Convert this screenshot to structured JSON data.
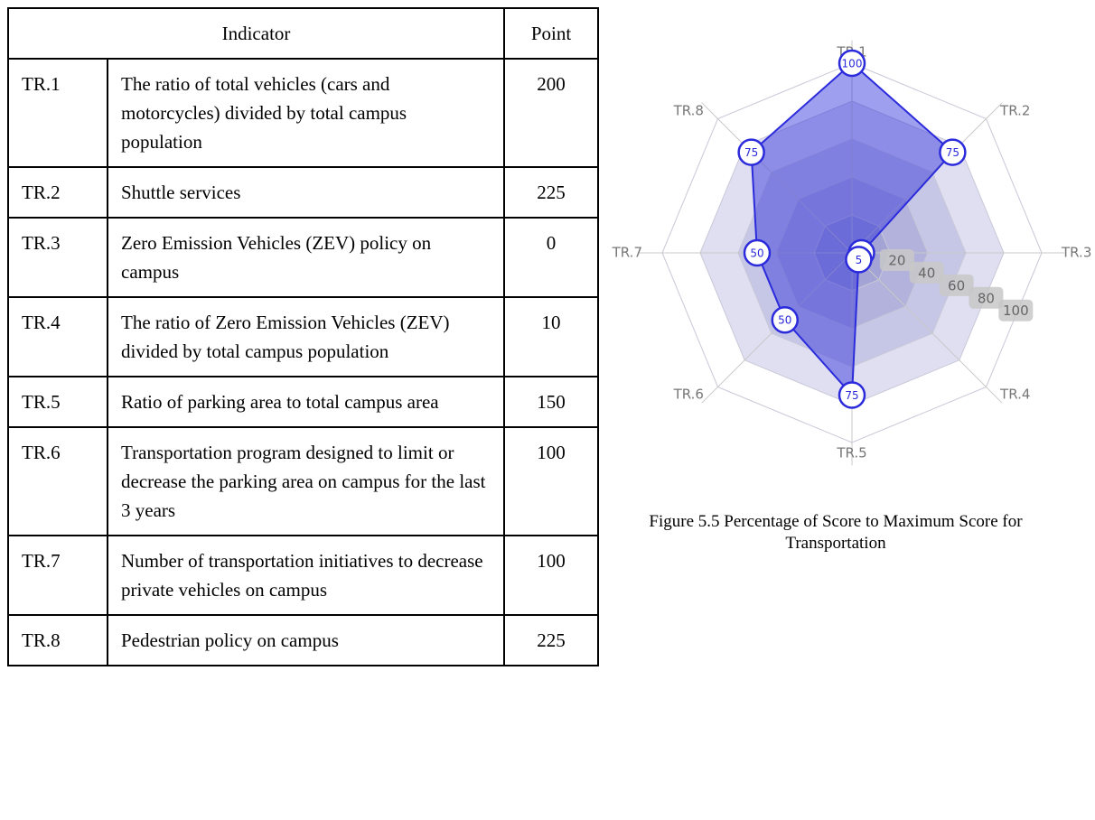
{
  "table": {
    "header": [
      "Indicator",
      "Point"
    ],
    "rows": [
      [
        "TR.1",
        "The ratio of total vehicles (cars and motorcycles) divided by total campus population",
        "200"
      ],
      [
        "TR.2",
        "Shuttle services",
        "225"
      ],
      [
        "TR.3",
        "Zero Emission Vehicles (ZEV) policy on campus",
        "0"
      ],
      [
        "TR.4",
        "The ratio of Zero Emission Vehicles (ZEV) divided by total campus population",
        "10"
      ],
      [
        "TR.5",
        "Ratio of parking area to total campus area",
        "150"
      ],
      [
        "TR.6",
        "Transportation program designed to limit or decrease the parking area on campus for the last 3 years",
        "100"
      ],
      [
        "TR.7",
        "Number of transportation initiatives to decrease private vehicles on campus",
        "100"
      ],
      [
        "TR.8",
        "Pedestrian policy on campus",
        "225"
      ]
    ]
  },
  "chart_data": {
    "type": "radar",
    "categories": [
      "TR.1",
      "TR.2",
      "TR.3",
      "TR.4",
      "TR.5",
      "TR.6",
      "TR.7",
      "TR.8"
    ],
    "values": [
      100,
      75,
      5,
      5,
      75,
      50,
      50,
      75
    ],
    "color": "#2b2bdc",
    "rlim": [
      0,
      100
    ],
    "rticks": [
      20,
      40,
      60,
      80,
      100
    ],
    "grid": true
  },
  "caption": "Figure 5.5 Percentage of Score to Maximum Score for Transportation"
}
